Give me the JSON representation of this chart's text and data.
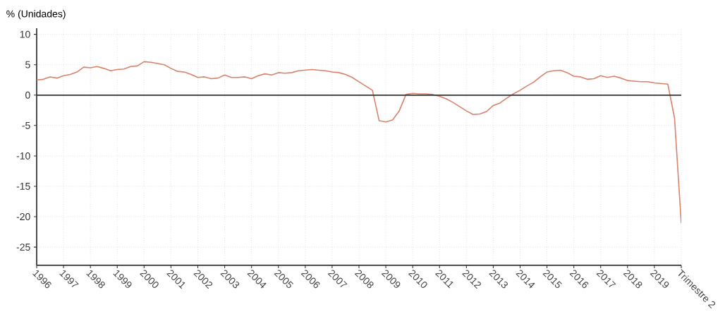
{
  "chart_data": {
    "type": "line",
    "ylabel": "% (Unidades)",
    "categories": [
      "1996",
      null,
      null,
      null,
      "1997",
      null,
      null,
      null,
      "1998",
      null,
      null,
      null,
      "1999",
      null,
      null,
      null,
      "2000",
      null,
      null,
      null,
      "2001",
      null,
      null,
      null,
      "2002",
      null,
      null,
      null,
      "2003",
      null,
      null,
      null,
      "2004",
      null,
      null,
      null,
      "2005",
      null,
      null,
      null,
      "2006",
      null,
      null,
      null,
      "2007",
      null,
      null,
      null,
      "2008",
      null,
      null,
      null,
      "2009",
      null,
      null,
      null,
      "2010",
      null,
      null,
      null,
      "2011",
      null,
      null,
      null,
      "2012",
      null,
      null,
      null,
      "2013",
      null,
      null,
      null,
      "2014",
      null,
      null,
      null,
      "2015",
      null,
      null,
      null,
      "2016",
      null,
      null,
      null,
      "2017",
      null,
      null,
      null,
      "2018",
      null,
      null,
      null,
      "2019",
      null,
      null,
      null,
      "Trimestre 2"
    ],
    "values": [
      2.5,
      2.6,
      3.0,
      2.8,
      3.2,
      3.4,
      3.8,
      4.6,
      4.5,
      4.7,
      4.4,
      4.0,
      4.2,
      4.3,
      4.7,
      4.8,
      5.5,
      5.4,
      5.2,
      5.0,
      4.4,
      3.9,
      3.8,
      3.4,
      2.9,
      3.0,
      2.7,
      2.8,
      3.3,
      2.9,
      2.9,
      3.0,
      2.7,
      3.2,
      3.5,
      3.3,
      3.7,
      3.6,
      3.7,
      4.0,
      4.1,
      4.2,
      4.1,
      4.0,
      3.8,
      3.7,
      3.4,
      2.9,
      2.2,
      1.5,
      0.8,
      -4.2,
      -4.4,
      -4.1,
      -2.6,
      0.1,
      0.3,
      0.2,
      0.2,
      0.1,
      -0.2,
      -0.6,
      -1.2,
      -1.9,
      -2.6,
      -3.2,
      -3.1,
      -2.7,
      -1.7,
      -1.3,
      -0.5,
      0.2,
      0.8,
      1.5,
      2.1,
      3.0,
      3.8,
      4.0,
      4.1,
      3.7,
      3.1,
      3.0,
      2.6,
      2.7,
      3.2,
      2.9,
      3.1,
      2.8,
      2.4,
      2.3,
      2.2,
      2.2,
      2.0,
      1.9,
      1.8,
      -3.8,
      -21.1
    ],
    "color": "#d9826a",
    "ylim": [
      -28,
      11
    ],
    "yticks": [
      -25,
      -20,
      -15,
      -10,
      -5,
      0,
      5,
      10
    ],
    "grid": true,
    "marker": "none",
    "line_style": "solid",
    "ref_lines": [
      {
        "axis": "y",
        "value": 0,
        "color": "#333333"
      }
    ]
  }
}
